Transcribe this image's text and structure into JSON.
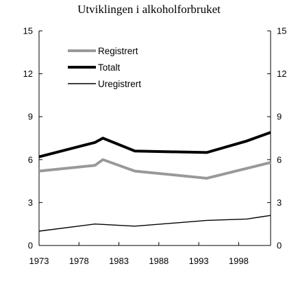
{
  "chart_data": {
    "type": "line",
    "title": "Utviklingen i alkoholforbruket",
    "xlabel": "",
    "ylabel": "",
    "xlim": [
      1973,
      2002
    ],
    "ylim": [
      0,
      15
    ],
    "x_ticks": [
      1973,
      1978,
      1983,
      1988,
      1993,
      1998
    ],
    "y_ticks": [
      0,
      3,
      6,
      9,
      12,
      15
    ],
    "y_axis_right": true,
    "grid": false,
    "legend_position": "top-left",
    "series": [
      {
        "name": "Registrert",
        "color": "#999999",
        "points": [
          [
            1973,
            5.2
          ],
          [
            1980,
            5.6
          ],
          [
            1981,
            6.0
          ],
          [
            1985,
            5.2
          ],
          [
            1994,
            4.7
          ],
          [
            2002,
            5.8
          ]
        ]
      },
      {
        "name": "Totalt",
        "color": "#000000",
        "points": [
          [
            1973,
            6.2
          ],
          [
            1980,
            7.2
          ],
          [
            1981,
            7.5
          ],
          [
            1985,
            6.6
          ],
          [
            1994,
            6.5
          ],
          [
            1999,
            7.3
          ],
          [
            2002,
            7.9
          ]
        ]
      },
      {
        "name": "Uregistrert",
        "color": "#000000",
        "points": [
          [
            1973,
            1.0
          ],
          [
            1980,
            1.5
          ],
          [
            1985,
            1.35
          ],
          [
            1994,
            1.75
          ],
          [
            1999,
            1.85
          ],
          [
            2002,
            2.1
          ]
        ]
      }
    ]
  }
}
